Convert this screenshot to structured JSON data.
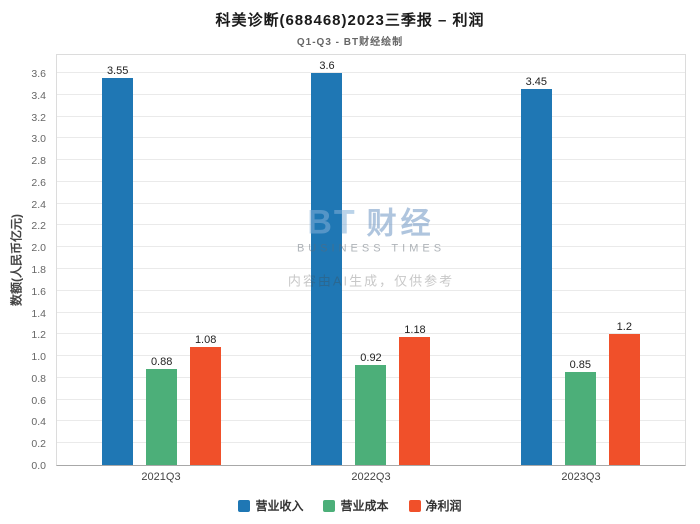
{
  "header": {
    "title": "科美诊断(688468)2023三季报 – 利润",
    "subtitle": "Q1-Q3 - BT财经绘制"
  },
  "watermark": {
    "logo_bt": "BT",
    "logo_cn": "财经",
    "logo_sub": "BUSINESS TIMES",
    "disclaimer": "内容由AI生成，仅供参考"
  },
  "chart_data": {
    "type": "bar",
    "title": "科美诊断(688468)2023三季报 – 利润",
    "subtitle": "Q1-Q3 - BT财经绘制",
    "categories": [
      "2021Q3",
      "2022Q3",
      "2023Q3"
    ],
    "series": [
      {
        "name": "营业收入",
        "color": "#1f77b4",
        "values": [
          3.55,
          3.6,
          3.45
        ]
      },
      {
        "name": "营业成本",
        "color": "#4caf79",
        "values": [
          0.88,
          0.92,
          0.85
        ]
      },
      {
        "name": "净利润",
        "color": "#f0502a",
        "values": [
          1.08,
          1.18,
          1.2
        ]
      }
    ],
    "xlabel": "",
    "ylabel": "数额(人民币亿元)",
    "ylim": [
      0,
      3.6
    ],
    "ytick_step": 0.2,
    "grid": true,
    "legend_position": "bottom"
  }
}
